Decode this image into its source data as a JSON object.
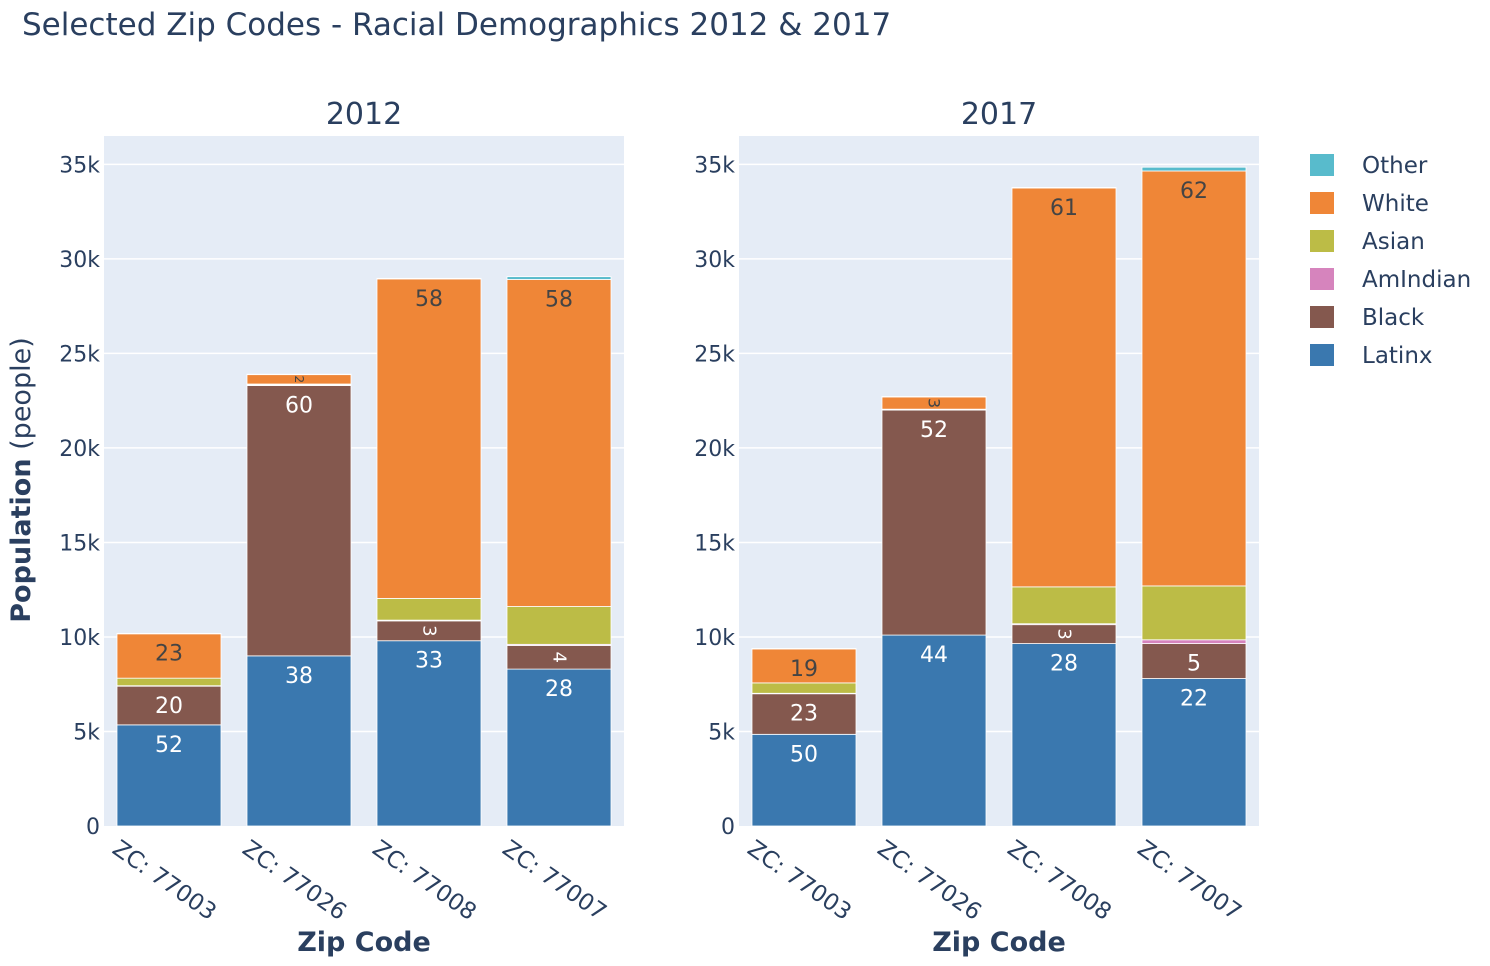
{
  "title": "Selected Zip Codes - Racial Demographics 2012 & 2017",
  "y_axis": {
    "label_bold": "Population",
    "label_rest": " (people)",
    "ticks": [
      0,
      5000,
      10000,
      15000,
      20000,
      25000,
      30000,
      35000
    ],
    "tick_labels": [
      "0",
      "5k",
      "10k",
      "15k",
      "20k",
      "25k",
      "30k",
      "35k"
    ],
    "ylim": [
      0,
      36500
    ]
  },
  "x_axis": {
    "label": "Zip Code"
  },
  "legend": {
    "position": "top-right",
    "items": [
      {
        "name": "Other",
        "color": "#58bbcc"
      },
      {
        "name": "White",
        "color": "#ef8637"
      },
      {
        "name": "Asian",
        "color": "#bcbc46"
      },
      {
        "name": "AmIndian",
        "color": "#d684bd"
      },
      {
        "name": "Black",
        "color": "#84584e"
      },
      {
        "name": "Latinx",
        "color": "#3a78af"
      }
    ]
  },
  "chart_data": [
    {
      "type": "bar",
      "stacked": true,
      "title": "2012",
      "categories": [
        "ZC: 77003",
        "ZC: 77026",
        "ZC: 77008",
        "ZC: 77007"
      ],
      "series": [
        {
          "name": "Latinx",
          "values": [
            5350,
            9000,
            9800,
            8300
          ],
          "labels": [
            "52",
            "38",
            "33",
            "28"
          ]
        },
        {
          "name": "Black",
          "values": [
            2050,
            14300,
            1050,
            1250
          ],
          "labels": [
            "20",
            "60",
            "3",
            "4"
          ]
        },
        {
          "name": "AmIndian",
          "values": [
            20,
            40,
            40,
            60
          ],
          "labels": [
            "",
            "",
            "",
            ""
          ]
        },
        {
          "name": "Asian",
          "values": [
            400,
            40,
            1150,
            2000
          ],
          "labels": [
            "",
            "",
            "",
            ""
          ]
        },
        {
          "name": "White",
          "values": [
            2350,
            500,
            16900,
            17300
          ],
          "labels": [
            "23",
            "2",
            "58",
            "58"
          ]
        },
        {
          "name": "Other",
          "values": [
            20,
            20,
            30,
            150
          ],
          "labels": [
            "",
            "",
            "",
            ""
          ]
        }
      ]
    },
    {
      "type": "bar",
      "stacked": true,
      "title": "2017",
      "categories": [
        "ZC: 77003",
        "ZC: 77026",
        "ZC: 77008",
        "ZC: 77007"
      ],
      "series": [
        {
          "name": "Latinx",
          "values": [
            4850,
            10100,
            9650,
            7800
          ],
          "labels": [
            "50",
            "44",
            "28",
            "22"
          ]
        },
        {
          "name": "Black",
          "values": [
            2150,
            11900,
            1000,
            1850
          ],
          "labels": [
            "23",
            "52",
            "3",
            "5"
          ]
        },
        {
          "name": "AmIndian",
          "values": [
            20,
            30,
            50,
            200
          ],
          "labels": [
            "",
            "",
            "",
            ""
          ]
        },
        {
          "name": "Asian",
          "values": [
            550,
            20,
            1950,
            2850
          ],
          "labels": [
            "",
            "",
            "",
            ""
          ]
        },
        {
          "name": "White",
          "values": [
            1800,
            650,
            21100,
            21950
          ],
          "labels": [
            "19",
            "3",
            "61",
            "62"
          ]
        },
        {
          "name": "Other",
          "values": [
            20,
            20,
            30,
            200
          ],
          "labels": [
            "",
            "",
            "",
            ""
          ]
        }
      ]
    }
  ]
}
